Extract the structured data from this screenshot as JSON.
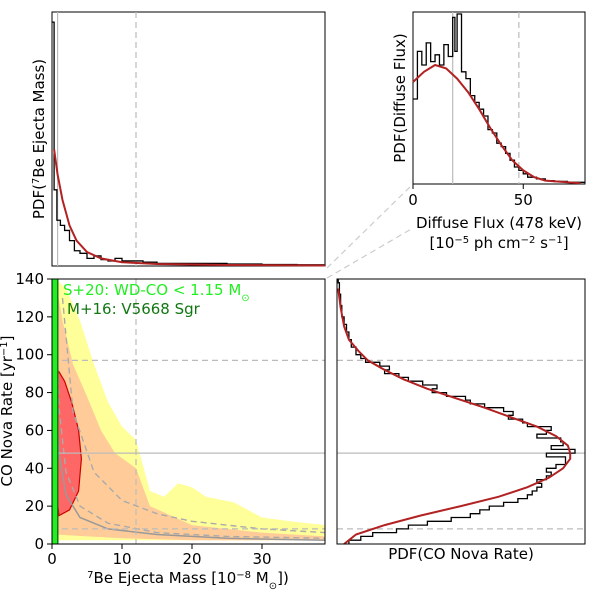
{
  "chart_data": [
    {
      "panel": "top-left",
      "type": "step",
      "ylabel_pre": "PDF(",
      "ylabel_sup": "7",
      "ylabel_post": "Be Ejecta Mass)",
      "xlim": [
        0,
        39
      ],
      "vlines": [
        0.8,
        12
      ],
      "histogram": [
        [
          0.0,
          0.96
        ],
        [
          0.3,
          0.3
        ],
        [
          0.7,
          0.18
        ],
        [
          1.2,
          0.16
        ],
        [
          1.8,
          0.14
        ],
        [
          2.5,
          0.1
        ],
        [
          3.2,
          0.06
        ],
        [
          4.0,
          0.05
        ],
        [
          5.0,
          0.03
        ],
        [
          6.0,
          0.04
        ],
        [
          7.0,
          0.025
        ],
        [
          8.0,
          0.02
        ],
        [
          9.0,
          0.03
        ],
        [
          10.0,
          0.02
        ],
        [
          11.0,
          0.02
        ],
        [
          13.0,
          0.015
        ],
        [
          15.0,
          0.01
        ],
        [
          20.0,
          0.01
        ],
        [
          25.0,
          0.008
        ],
        [
          30.0,
          0.006
        ],
        [
          35.0,
          0.005
        ],
        [
          39.0,
          0.005
        ]
      ],
      "fit": [
        [
          0.3,
          0.46
        ],
        [
          0.8,
          0.36
        ],
        [
          1.5,
          0.26
        ],
        [
          2.5,
          0.16
        ],
        [
          3.5,
          0.1
        ],
        [
          5.0,
          0.055
        ],
        [
          7.0,
          0.03
        ],
        [
          10.0,
          0.015
        ],
        [
          15.0,
          0.008
        ],
        [
          25.0,
          0.004
        ],
        [
          39.0,
          0.002
        ]
      ]
    },
    {
      "panel": "top-right-inset",
      "type": "step",
      "xlabel": "Diffuse Flux (478 keV)",
      "xlabel_units_pre": "[10",
      "xlabel_units_sup1": "−5",
      "xlabel_units_mid": " ph cm",
      "xlabel_units_sup2": "−2",
      "xlabel_units_mid2": " s",
      "xlabel_units_sup3": "−1",
      "xlabel_units_post": "]",
      "ylabel": "PDF(Diffuse Flux)",
      "xlim": [
        0,
        78
      ],
      "xticks": [
        "0",
        "50"
      ],
      "vlines": [
        18,
        48
      ],
      "histogram": [
        [
          0,
          0.5
        ],
        [
          2,
          0.78
        ],
        [
          4,
          0.7
        ],
        [
          6,
          0.83
        ],
        [
          8,
          0.72
        ],
        [
          10,
          0.76
        ],
        [
          12,
          0.7
        ],
        [
          14,
          0.82
        ],
        [
          16,
          0.75
        ],
        [
          18,
          0.98
        ],
        [
          19,
          0.78
        ],
        [
          20,
          1.0
        ],
        [
          22,
          0.66
        ],
        [
          24,
          0.62
        ],
        [
          26,
          0.52
        ],
        [
          28,
          0.48
        ],
        [
          30,
          0.44
        ],
        [
          32,
          0.4
        ],
        [
          34,
          0.32
        ],
        [
          36,
          0.3
        ],
        [
          38,
          0.24
        ],
        [
          40,
          0.22
        ],
        [
          42,
          0.18
        ],
        [
          44,
          0.14
        ],
        [
          46,
          0.1
        ],
        [
          48,
          0.08
        ],
        [
          50,
          0.06
        ],
        [
          52,
          0.04
        ],
        [
          56,
          0.03
        ],
        [
          60,
          0.02
        ],
        [
          64,
          0.015
        ],
        [
          70,
          0.01
        ],
        [
          78,
          0.01
        ]
      ],
      "fit": [
        [
          0,
          0.6
        ],
        [
          5,
          0.66
        ],
        [
          10,
          0.7
        ],
        [
          15,
          0.68
        ],
        [
          20,
          0.62
        ],
        [
          25,
          0.54
        ],
        [
          30,
          0.44
        ],
        [
          35,
          0.33
        ],
        [
          40,
          0.23
        ],
        [
          45,
          0.14
        ],
        [
          50,
          0.08
        ],
        [
          55,
          0.04
        ],
        [
          60,
          0.02
        ],
        [
          70,
          0.01
        ],
        [
          76,
          0.005
        ]
      ]
    },
    {
      "panel": "bottom-left",
      "type": "area",
      "xlabel_pre": "",
      "xlabel_sup": "7",
      "xlabel_post": "Be Ejecta Mass [10",
      "xlabel_sup2": "−8",
      "xlabel_post2": " M",
      "xlabel_sub": "⊙",
      "xlabel_end": "])",
      "ylabel_pre": "CO Nova Rate [yr",
      "ylabel_sup": "−1",
      "ylabel_post": "]",
      "xlim": [
        0,
        39
      ],
      "ylim": [
        0,
        140
      ],
      "xticks": [
        "0",
        "10",
        "20",
        "30"
      ],
      "yticks": [
        "0",
        "20",
        "40",
        "60",
        "80",
        "100",
        "120",
        "140"
      ],
      "hlines": [
        97,
        8
      ],
      "hline_solid": 48,
      "vlines": [
        0.8,
        12
      ],
      "legend": [
        {
          "text_pre": "S+20: WD-CO  < 1.15 M",
          "text_sub": "⊙",
          "color": "#22ee22"
        },
        {
          "text_pre": "M+16: V5668 Sgr",
          "text_sub": "",
          "color": "#117711"
        }
      ],
      "band_outer": {
        "color": "#ffff99",
        "upper": [
          [
            0.5,
            140
          ],
          [
            2,
            135
          ],
          [
            4,
            118
          ],
          [
            6,
            95
          ],
          [
            8,
            75
          ],
          [
            10,
            62
          ],
          [
            12,
            55
          ],
          [
            14,
            28
          ],
          [
            16,
            25
          ],
          [
            18,
            32
          ],
          [
            20,
            30
          ],
          [
            22,
            25
          ],
          [
            26,
            22
          ],
          [
            30,
            14
          ],
          [
            34,
            12
          ],
          [
            39,
            10
          ]
        ],
        "lower": [
          [
            39,
            2
          ],
          [
            30,
            2
          ],
          [
            20,
            2
          ],
          [
            10,
            2
          ],
          [
            5,
            2
          ],
          [
            0.5,
            2
          ]
        ]
      },
      "band_inner": {
        "color": "#ffcc99",
        "upper": [
          [
            0.5,
            140
          ],
          [
            1.5,
            118
          ],
          [
            3,
            95
          ],
          [
            5,
            78
          ],
          [
            7,
            60
          ],
          [
            9,
            48
          ],
          [
            12,
            40
          ],
          [
            14,
            20
          ],
          [
            20,
            10
          ],
          [
            30,
            6
          ],
          [
            39,
            4
          ]
        ],
        "lower": [
          [
            39,
            2
          ],
          [
            20,
            2
          ],
          [
            10,
            3
          ],
          [
            5,
            4
          ],
          [
            0.5,
            5
          ]
        ]
      },
      "contour": {
        "color": "#ff6666",
        "points": [
          [
            1.0,
            15
          ],
          [
            2.5,
            18
          ],
          [
            3.8,
            28
          ],
          [
            4.2,
            45
          ],
          [
            3.8,
            60
          ],
          [
            2.8,
            75
          ],
          [
            1.8,
            86
          ],
          [
            1.0,
            91
          ],
          [
            0.6,
            88
          ],
          [
            0.5,
            60
          ],
          [
            0.5,
            30
          ]
        ]
      },
      "dashed_curves": [
        [
          [
            1.5,
            130
          ],
          [
            3,
            70
          ],
          [
            6,
            38
          ],
          [
            10,
            23
          ],
          [
            15,
            16
          ],
          [
            20,
            12
          ],
          [
            30,
            8
          ],
          [
            39,
            6
          ]
        ],
        [
          [
            0.5,
            135
          ],
          [
            1,
            72
          ],
          [
            2,
            38
          ],
          [
            4,
            20
          ],
          [
            8,
            11
          ],
          [
            15,
            6
          ],
          [
            25,
            4
          ],
          [
            39,
            3
          ]
        ]
      ],
      "solid_curve": [
        [
          0.5,
          88
        ],
        [
          1,
          48
        ],
        [
          2,
          26
        ],
        [
          4,
          14
        ],
        [
          8,
          8
        ],
        [
          15,
          5
        ],
        [
          25,
          3
        ],
        [
          39,
          2
        ]
      ]
    },
    {
      "panel": "bottom-right",
      "type": "step",
      "xlabel": "PDF(CO Nova Rate)",
      "ylim": [
        0,
        140
      ],
      "hlines": [
        97,
        8
      ],
      "hline_solid": 48,
      "histogram": [
        [
          0,
          0.05
        ],
        [
          2,
          0.1
        ],
        [
          4,
          0.15
        ],
        [
          6,
          0.25
        ],
        [
          8,
          0.3
        ],
        [
          10,
          0.38
        ],
        [
          12,
          0.48
        ],
        [
          14,
          0.56
        ],
        [
          16,
          0.6
        ],
        [
          18,
          0.64
        ],
        [
          20,
          0.7
        ],
        [
          22,
          0.76
        ],
        [
          24,
          0.8
        ],
        [
          26,
          0.82
        ],
        [
          28,
          0.84
        ],
        [
          30,
          0.86
        ],
        [
          32,
          0.84
        ],
        [
          34,
          0.88
        ],
        [
          36,
          0.9
        ],
        [
          38,
          0.88
        ],
        [
          40,
          0.92
        ],
        [
          42,
          0.96
        ],
        [
          44,
          0.96
        ],
        [
          46,
          0.88
        ],
        [
          48,
          1.0
        ],
        [
          50,
          0.9
        ],
        [
          52,
          0.95
        ],
        [
          54,
          0.94
        ],
        [
          56,
          0.84
        ],
        [
          58,
          0.88
        ],
        [
          60,
          0.9
        ],
        [
          62,
          0.8
        ],
        [
          64,
          0.78
        ],
        [
          66,
          0.72
        ],
        [
          68,
          0.74
        ],
        [
          70,
          0.7
        ],
        [
          72,
          0.62
        ],
        [
          74,
          0.56
        ],
        [
          76,
          0.54
        ],
        [
          78,
          0.46
        ],
        [
          80,
          0.4
        ],
        [
          82,
          0.42
        ],
        [
          84,
          0.36
        ],
        [
          86,
          0.3
        ],
        [
          88,
          0.26
        ],
        [
          90,
          0.2
        ],
        [
          92,
          0.22
        ],
        [
          94,
          0.18
        ],
        [
          96,
          0.12
        ],
        [
          98,
          0.1
        ],
        [
          100,
          0.08
        ],
        [
          104,
          0.06
        ],
        [
          108,
          0.05
        ],
        [
          112,
          0.04
        ],
        [
          116,
          0.03
        ],
        [
          120,
          0.02
        ],
        [
          126,
          0.015
        ],
        [
          132,
          0.01
        ],
        [
          138,
          0.005
        ]
      ],
      "fit": [
        [
          0,
          0.03
        ],
        [
          5,
          0.08
        ],
        [
          10,
          0.2
        ],
        [
          15,
          0.35
        ],
        [
          20,
          0.52
        ],
        [
          25,
          0.68
        ],
        [
          30,
          0.8
        ],
        [
          35,
          0.89
        ],
        [
          40,
          0.95
        ],
        [
          45,
          0.98
        ],
        [
          48,
          0.98
        ],
        [
          52,
          0.97
        ],
        [
          57,
          0.92
        ],
        [
          62,
          0.84
        ],
        [
          67,
          0.73
        ],
        [
          72,
          0.62
        ],
        [
          77,
          0.5
        ],
        [
          82,
          0.38
        ],
        [
          87,
          0.28
        ],
        [
          92,
          0.2
        ],
        [
          97,
          0.13
        ],
        [
          102,
          0.09
        ],
        [
          108,
          0.05
        ],
        [
          115,
          0.03
        ],
        [
          125,
          0.015
        ],
        [
          135,
          0.005
        ]
      ]
    }
  ]
}
